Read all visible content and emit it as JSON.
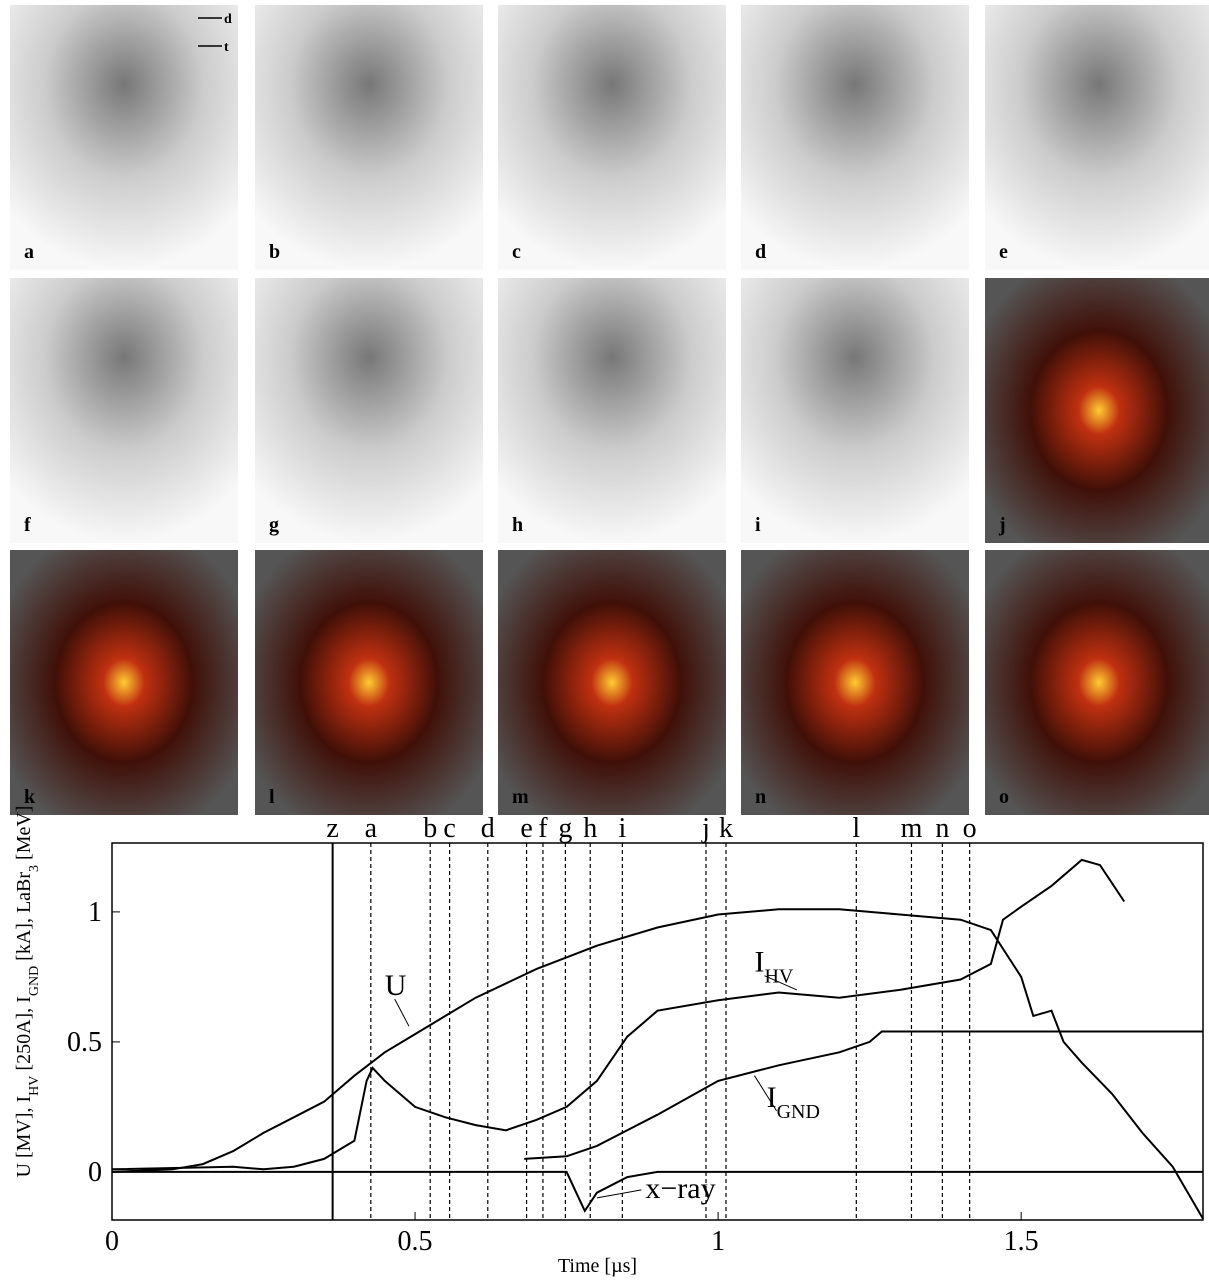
{
  "panels": [
    "a",
    "b",
    "c",
    "d",
    "e",
    "f",
    "g",
    "h",
    "i",
    "j",
    "k",
    "l",
    "m",
    "n",
    "o"
  ],
  "panel_arrows": [
    "d",
    "t"
  ],
  "chart_data": {
    "type": "line",
    "xlabel": "Time [µs]",
    "ylabel": [
      "U [MV], I",
      "HV",
      " [250A], I",
      "GND",
      " [kA], LaBr",
      "3",
      " [MeV]"
    ],
    "xlim": [
      0,
      1.8
    ],
    "xticks": [
      0,
      0.5,
      1,
      1.5
    ],
    "ylim": [
      -0.185,
      1.265
    ],
    "yticks": [
      0,
      0.5,
      1
    ],
    "markers": {
      "labels": [
        "z",
        "a",
        "b",
        "c",
        "d",
        "e",
        "f",
        "g",
        "h",
        "i",
        "j",
        "k",
        "l",
        "m",
        "n",
        "o"
      ],
      "x": [
        0.364,
        0.427,
        0.525,
        0.557,
        0.62,
        0.684,
        0.711,
        0.748,
        0.789,
        0.842,
        0.98,
        1.013,
        1.228,
        1.319,
        1.37,
        1.415
      ]
    },
    "series": [
      {
        "name": "U",
        "color": "#000000",
        "x": [
          0,
          0.1,
          0.15,
          0.2,
          0.25,
          0.3,
          0.35,
          0.4,
          0.45,
          0.5,
          0.55,
          0.6,
          0.7,
          0.8,
          0.9,
          1.0,
          1.1,
          1.2,
          1.3,
          1.4,
          1.45,
          1.5,
          1.52,
          1.55,
          1.57,
          1.6,
          1.65,
          1.7,
          1.75,
          1.8
        ],
        "values": [
          0,
          0.01,
          0.03,
          0.08,
          0.15,
          0.21,
          0.27,
          0.37,
          0.46,
          0.53,
          0.6,
          0.67,
          0.78,
          0.87,
          0.94,
          0.99,
          1.01,
          1.01,
          0.99,
          0.97,
          0.93,
          0.75,
          0.6,
          0.62,
          0.5,
          0.42,
          0.3,
          0.15,
          0.02,
          -0.18
        ]
      },
      {
        "name": "I",
        "sub": "HV",
        "color": "#000000",
        "x": [
          0,
          0.2,
          0.25,
          0.3,
          0.35,
          0.4,
          0.42,
          0.43,
          0.45,
          0.5,
          0.55,
          0.6,
          0.65,
          0.7,
          0.75,
          0.8,
          0.85,
          0.9,
          1.0,
          1.1,
          1.2,
          1.3,
          1.4,
          1.45,
          1.47,
          1.5,
          1.55,
          1.6,
          1.63,
          1.67
        ],
        "values": [
          0.01,
          0.02,
          0.01,
          0.02,
          0.05,
          0.12,
          0.35,
          0.4,
          0.35,
          0.25,
          0.21,
          0.18,
          0.16,
          0.2,
          0.25,
          0.35,
          0.52,
          0.62,
          0.66,
          0.69,
          0.67,
          0.7,
          0.74,
          0.8,
          0.97,
          1.02,
          1.1,
          1.2,
          1.18,
          1.04
        ]
      },
      {
        "name": "I",
        "sub": "GND",
        "color": "#000000",
        "x": [
          0.68,
          0.75,
          0.8,
          0.9,
          1.0,
          1.1,
          1.2,
          1.25,
          1.27,
          1.8
        ],
        "values": [
          0.05,
          0.06,
          0.1,
          0.22,
          0.35,
          0.41,
          0.46,
          0.5,
          0.54,
          0.54
        ]
      },
      {
        "name": "x−ray",
        "color": "#000000",
        "x": [
          0,
          0.75,
          0.77,
          0.78,
          0.8,
          0.85,
          0.9,
          1.8
        ],
        "values": [
          0,
          0,
          -0.1,
          -0.15,
          -0.08,
          -0.02,
          0,
          0
        ]
      }
    ]
  }
}
